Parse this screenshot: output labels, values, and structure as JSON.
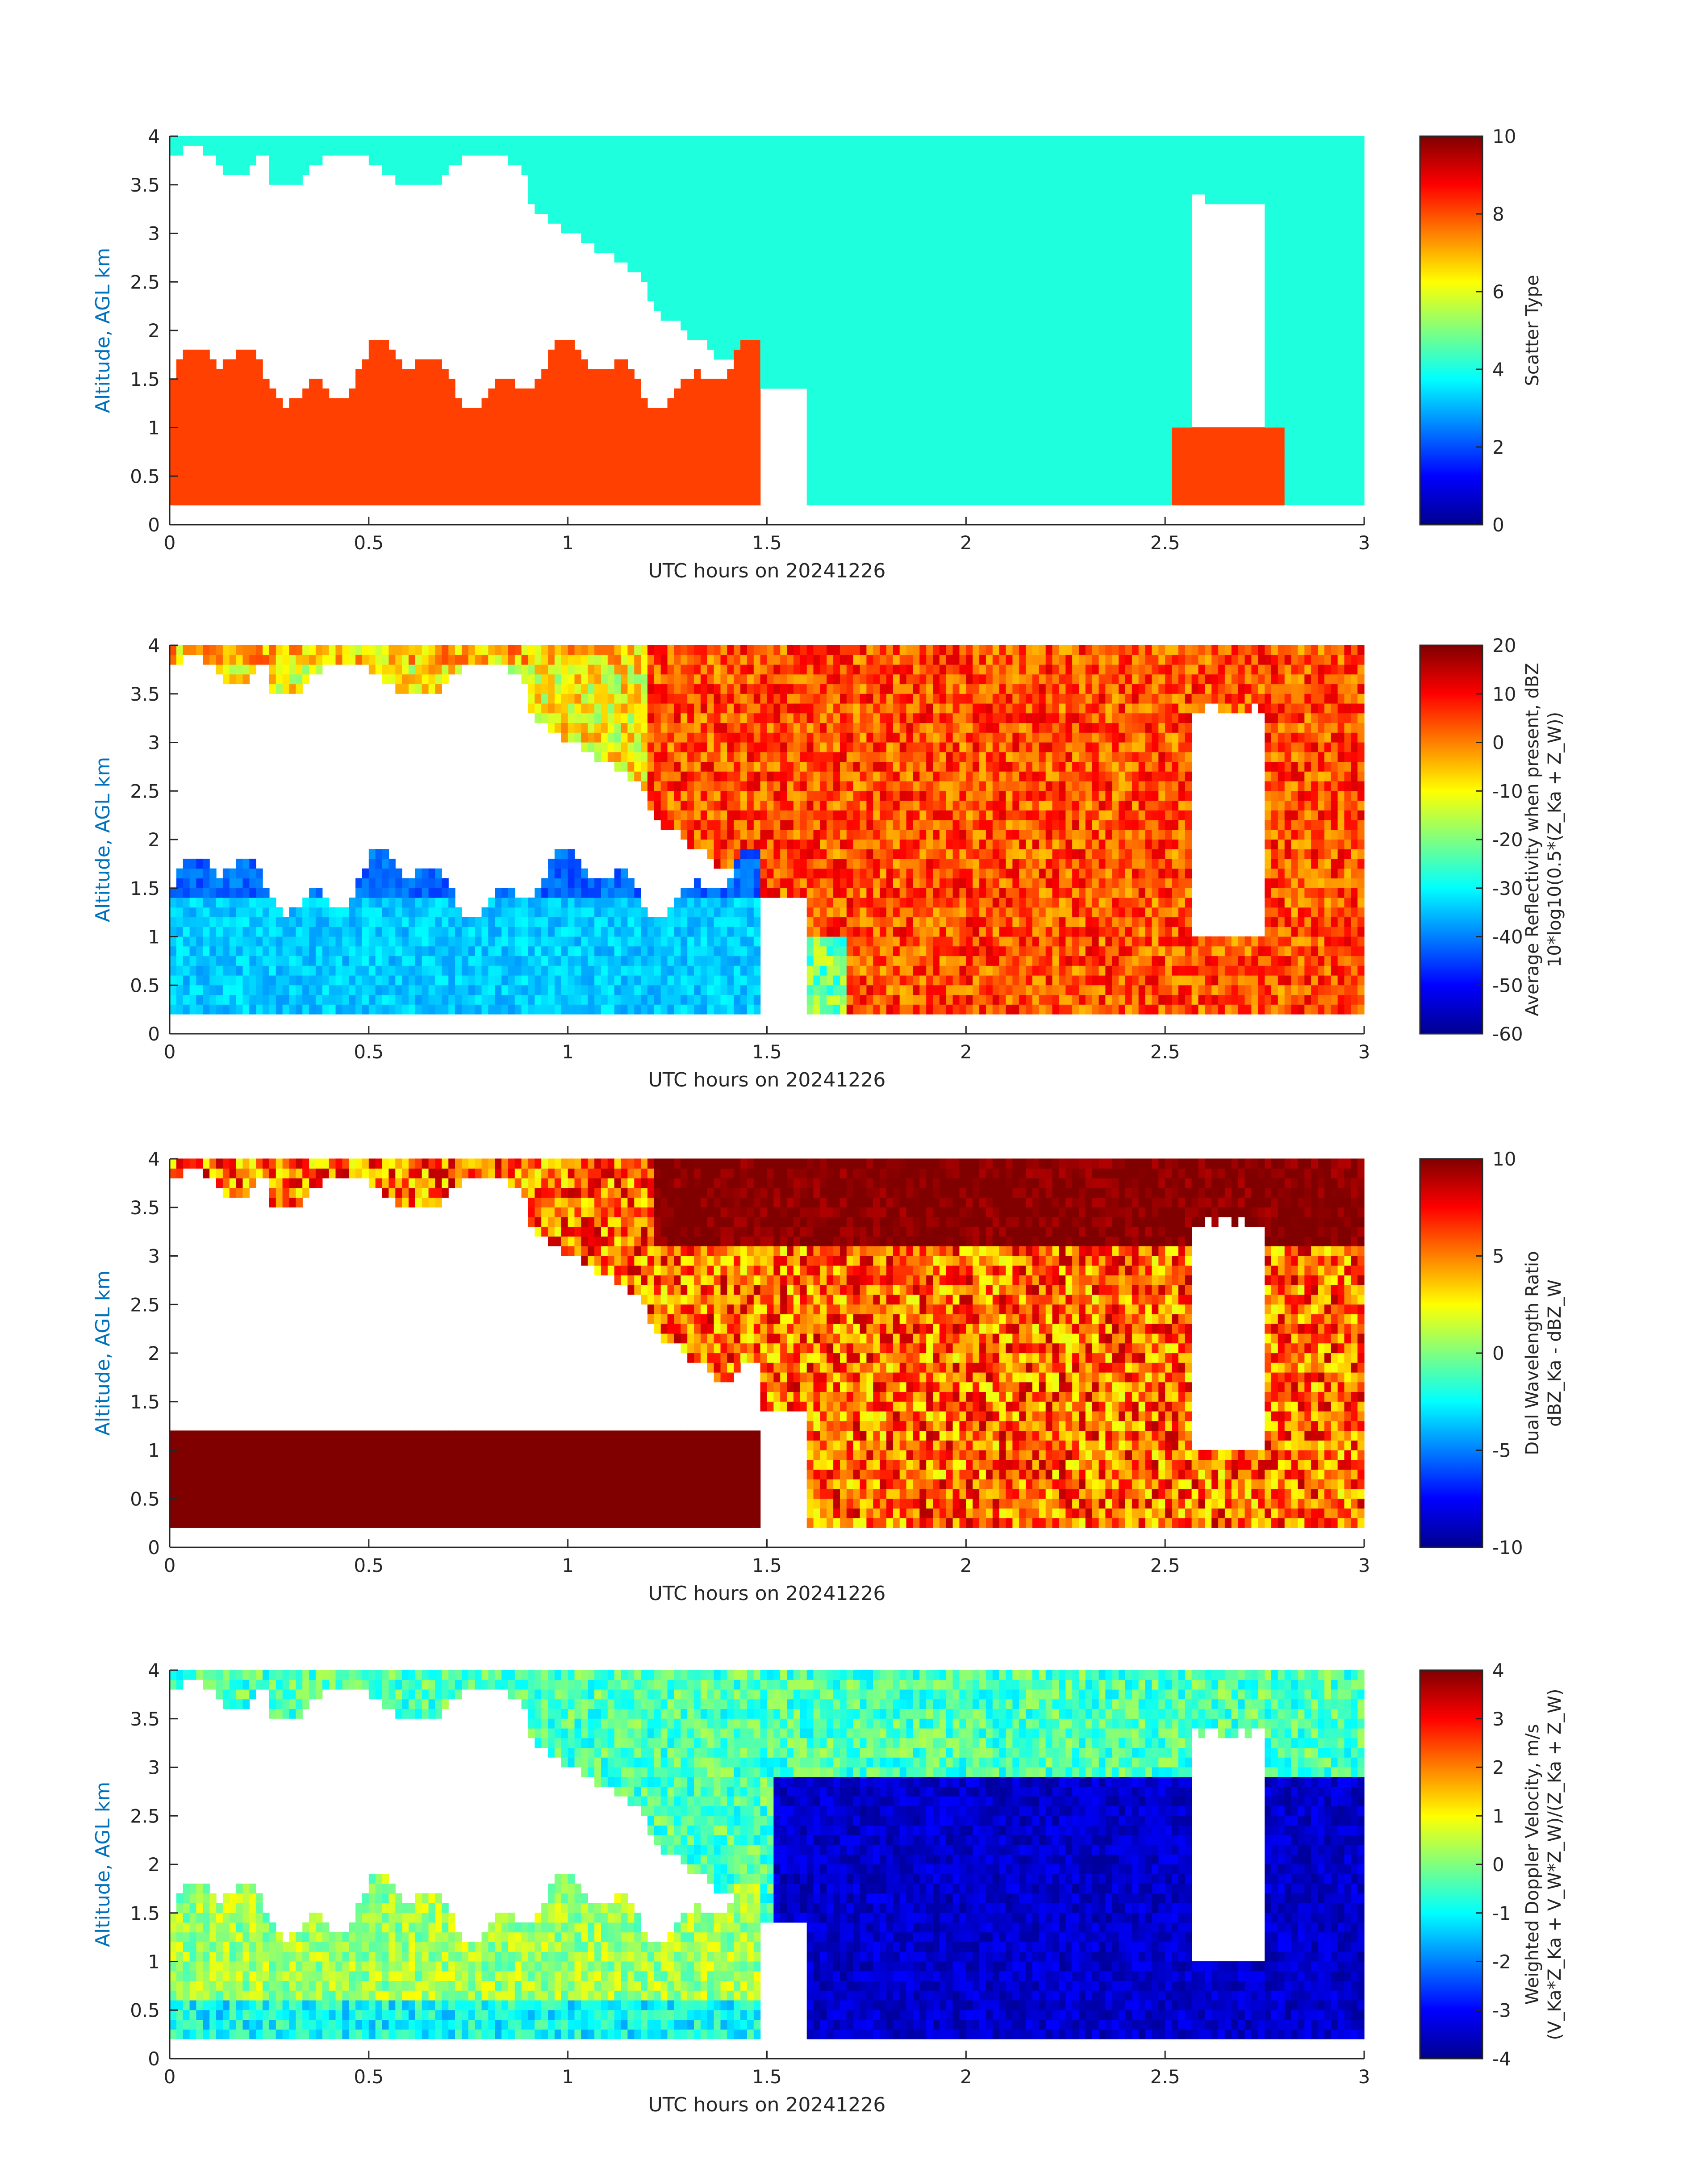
{
  "figure": {
    "date": "20241226"
  },
  "chart_data": [
    {
      "type": "heatmap",
      "panel": "scatter-type",
      "xlabel": "UTC hours on 20241226",
      "ylabel": "Altitude, AGL km",
      "xlim": [
        0,
        3
      ],
      "ylim": [
        0,
        4
      ],
      "xticks": [
        0,
        0.5,
        1,
        1.5,
        2,
        2.5,
        3
      ],
      "xtick_labels": [
        "0",
        "0.5",
        "1",
        "1.5",
        "2",
        "2.5",
        "3"
      ],
      "yticks": [
        0,
        0.5,
        1,
        1.5,
        2,
        2.5,
        3,
        3.5,
        4
      ],
      "ytick_labels": [
        "0",
        "0.5",
        "1",
        "1.5",
        "2",
        "2.5",
        "3",
        "3.5",
        "4"
      ],
      "colorbar": {
        "label_lines": [
          "Scatter Type"
        ],
        "range": [
          0,
          10
        ],
        "ticks": [
          0,
          2,
          4,
          6,
          8,
          10
        ],
        "tick_labels": [
          "0",
          "2",
          "4",
          "6",
          "8",
          "10"
        ],
        "colormap": "jet"
      }
    },
    {
      "type": "heatmap",
      "panel": "reflectivity",
      "xlabel": "UTC hours on 20241226",
      "ylabel": "Altitude, AGL km",
      "xlim": [
        0,
        3
      ],
      "ylim": [
        0,
        4
      ],
      "xticks": [
        0,
        0.5,
        1,
        1.5,
        2,
        2.5,
        3
      ],
      "xtick_labels": [
        "0",
        "0.5",
        "1",
        "1.5",
        "2",
        "2.5",
        "3"
      ],
      "yticks": [
        0,
        0.5,
        1,
        1.5,
        2,
        2.5,
        3,
        3.5,
        4
      ],
      "ytick_labels": [
        "0",
        "0.5",
        "1",
        "1.5",
        "2",
        "2.5",
        "3",
        "3.5",
        "4"
      ],
      "colorbar": {
        "label_lines": [
          "Average Reflectivity when present, dBZ",
          "10*log10(0.5*(Z_Ka + Z_W))"
        ],
        "range": [
          -60,
          20
        ],
        "ticks": [
          -60,
          -50,
          -40,
          -30,
          -20,
          -10,
          0,
          10,
          20
        ],
        "tick_labels": [
          "-60",
          "-50",
          "-40",
          "-30",
          "-20",
          "-10",
          "0",
          "10",
          "20"
        ],
        "colormap": "jet"
      }
    },
    {
      "type": "heatmap",
      "panel": "dual-wavelength-ratio",
      "xlabel": "UTC hours on 20241226",
      "ylabel": "Altitude, AGL km",
      "xlim": [
        0,
        3
      ],
      "ylim": [
        0,
        4
      ],
      "xticks": [
        0,
        0.5,
        1,
        1.5,
        2,
        2.5,
        3
      ],
      "xtick_labels": [
        "0",
        "0.5",
        "1",
        "1.5",
        "2",
        "2.5",
        "3"
      ],
      "yticks": [
        0,
        0.5,
        1,
        1.5,
        2,
        2.5,
        3,
        3.5,
        4
      ],
      "ytick_labels": [
        "0",
        "0.5",
        "1",
        "1.5",
        "2",
        "2.5",
        "3",
        "3.5",
        "4"
      ],
      "colorbar": {
        "label_lines": [
          "Dual Wavelength Ratio",
          "dBZ_Ka - dBZ_W"
        ],
        "range": [
          -10,
          10
        ],
        "ticks": [
          -10,
          -5,
          0,
          5,
          10
        ],
        "tick_labels": [
          "-10",
          "-5",
          "0",
          "5",
          "10"
        ],
        "colormap": "jet"
      }
    },
    {
      "type": "heatmap",
      "panel": "doppler-velocity",
      "xlabel": "UTC hours on 20241226",
      "ylabel": "Altitude, AGL km",
      "xlim": [
        0,
        3
      ],
      "ylim": [
        0,
        4
      ],
      "xticks": [
        0,
        0.5,
        1,
        1.5,
        2,
        2.5,
        3
      ],
      "xtick_labels": [
        "0",
        "0.5",
        "1",
        "1.5",
        "2",
        "2.5",
        "3"
      ],
      "yticks": [
        0,
        0.5,
        1,
        1.5,
        2,
        2.5,
        3,
        3.5,
        4
      ],
      "ytick_labels": [
        "0",
        "0.5",
        "1",
        "1.5",
        "2",
        "2.5",
        "3",
        "3.5",
        "4"
      ],
      "colorbar": {
        "label_lines": [
          "Weighted Doppler Velocity, m/s",
          "(V_Ka*Z_Ka + V_W*Z_W)/(Z_Ka + Z_W)"
        ],
        "range": [
          -4,
          4
        ],
        "ticks": [
          -4,
          -3,
          -2,
          -1,
          0,
          1,
          2,
          3,
          4
        ],
        "tick_labels": [
          "-4",
          "-3",
          "-2",
          "-1",
          "0",
          "1",
          "2",
          "3",
          "4"
        ],
        "colormap": "jet"
      }
    }
  ],
  "colors": {
    "scatter_cloud": "#1effde",
    "scatter_precip": "#ff4000",
    "ylabel": "#0072BD",
    "axis": "#262626"
  }
}
